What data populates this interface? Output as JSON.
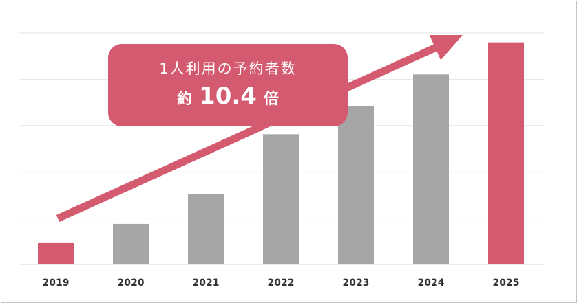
{
  "colors": {
    "highlight": "#d45b6f",
    "bar": "#a6a6a6",
    "grid": "#e6e6e6",
    "text": "#333333"
  },
  "callout": {
    "line1": "1人利用の予約者数",
    "prefix": "約",
    "value": "10.4",
    "suffix": "倍"
  },
  "chart_data": {
    "type": "bar",
    "categories": [
      "2019",
      "2020",
      "2021",
      "2022",
      "2023",
      "2024",
      "2025"
    ],
    "values": [
      1,
      1.9,
      3.3,
      6.1,
      7.4,
      8.9,
      10.4
    ],
    "highlighted": [
      "2019",
      "2025"
    ],
    "ylim": [
      0,
      11
    ],
    "y_axis_labels": false,
    "grid": true,
    "trend_arrow": true
  }
}
